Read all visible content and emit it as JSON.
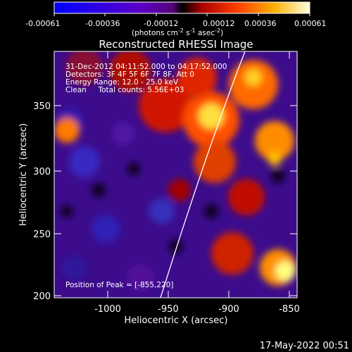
{
  "colorbar": {
    "tick_labels": [
      "-0.00061",
      "-0.00036",
      "-0.00012",
      "0.00012",
      "0.00036",
      "0.00061"
    ],
    "unit_label_base": "(photons cm",
    "unit_label_sup1": "-2",
    "unit_label_mid1": " s",
    "unit_label_sup2": "-1",
    "unit_label_mid2": " asec",
    "unit_label_sup3": "-2",
    "unit_label_end": ")"
  },
  "plot": {
    "title": "Reconstructed RHESSI Image",
    "xlabel": "Heliocentric X (arcsec)",
    "ylabel": "Heliocentric Y (arcsec)",
    "x_ticks": [
      "-1000",
      "-950",
      "-900",
      "-850"
    ],
    "y_ticks": [
      "200",
      "250",
      "300",
      "350"
    ],
    "annotations": {
      "time_range": "31-Dec-2012 04:11:52.000 to 04:17:52.000",
      "detectors": "Detectors: 3F 4F 5F 6F 7F 8F, Att 0",
      "energy_range": "Energy Range: 12.0 - 25.0 keV",
      "clean_counts": "Clean     Total counts: 5.56E+03",
      "peak_position": "Position of Peak = [-855,220]"
    }
  },
  "footer": {
    "timestamp": "17-May-2022 00:51"
  },
  "colors": {
    "background": "#000000",
    "purple_field": "#4b0fa0",
    "hot_red": "#e62800",
    "hot_orange": "#ff8c00",
    "hot_yellow": "#ffff80"
  }
}
